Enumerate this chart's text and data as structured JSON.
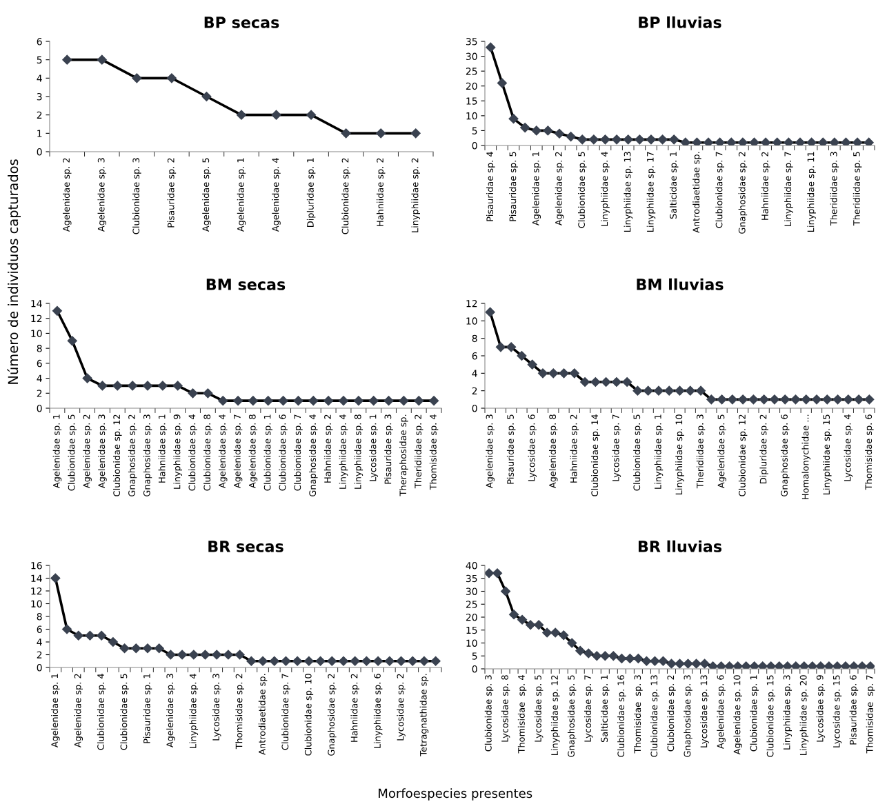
{
  "chart_data": [
    {
      "type": "line",
      "title": "BP secas",
      "categories": [
        "Agelenidae sp. 2",
        "Agelenidae sp. 3",
        "Clubionidae sp. 3",
        "Pisauridae sp. 2",
        "Agelenidae sp. 5",
        "Agelenidae sp. 1",
        "Agelenidae sp. 4",
        "Dipluridae sp. 1",
        "Clubionidae sp. 2",
        "Hahniidae sp. 2",
        "Linyphiidae sp. 2"
      ],
      "series": [
        {
          "color": "#3a4250",
          "values": [
            5,
            5,
            4,
            4,
            3,
            2,
            2,
            2,
            1,
            1,
            1
          ]
        }
      ],
      "ylim": [
        0,
        6
      ],
      "yticks": [
        0,
        1,
        2,
        3,
        4,
        5,
        6
      ],
      "marker": "diamond",
      "line_style": "solid",
      "grid": false
    },
    {
      "type": "line",
      "title": "BP lluvias",
      "categories": [
        "Pisauridae sp. 4",
        null,
        "Pisauridae sp. 5",
        null,
        "Agelenidae sp. 1",
        null,
        "Agelenidae sp. 2",
        null,
        "Clubionidae sp. 5",
        null,
        "Linyphiidae sp. 4",
        null,
        "Linyphiidae sp. 13",
        null,
        "Linyphiidae sp. 17",
        null,
        "Salticidae sp. 1",
        null,
        "Antrodiaetidae sp.",
        null,
        "Clubionidae sp. 7",
        null,
        "Gnaphosidae sp. 2",
        null,
        "Hahniidae sp. 2",
        null,
        "Linyphiidae sp. 7",
        null,
        "Linyphiidae sp. 11",
        null,
        "Theridiidae sp. 3",
        null,
        "Theridiidae sp. 5",
        null
      ],
      "series": [
        {
          "color": "#3a4250",
          "values": [
            33,
            21,
            9,
            6,
            5,
            5,
            4,
            3,
            2,
            2,
            2,
            2,
            2,
            2,
            2,
            2,
            2,
            1,
            1,
            1,
            1,
            1,
            1,
            1,
            1,
            1,
            1,
            1,
            1,
            1,
            1,
            1,
            1,
            1
          ]
        }
      ],
      "ylim": [
        0,
        35
      ],
      "yticks": [
        0,
        5,
        10,
        15,
        20,
        25,
        30,
        35
      ],
      "marker": "diamond",
      "line_style": "solid",
      "grid": false
    },
    {
      "type": "line",
      "title": "BM secas",
      "ylabel": "Número de individuos capturados",
      "categories": [
        "Agelenidae sp. 1",
        "Clubionidae sp. 5",
        "Agelenidae sp. 2",
        "Agelenidae sp. 3",
        "Clubionidae sp. 12",
        "Gnaphosidae sp. 2",
        "Gnaphosidae sp. 3",
        "Hahniidae sp. 1",
        "Linyphiidae sp. 9",
        "Clubionidae sp. 4",
        "Clubionidae sp. 8",
        "Agelenidae sp. 4",
        "Agelenidae sp. 7",
        "Agelenidae sp. 8",
        "Clubionidae sp. 1",
        "Clubionidae sp. 6",
        "Clubionidae sp. 7",
        "Gnaphosidae sp. 4",
        "Hahniidae sp. 2",
        "Linyphiidae sp. 4",
        "Linyphiidae sp. 8",
        "Lycosidae sp. 1",
        "Pisauridae sp. 3",
        "Theraphosidae sp.",
        "Theridiidae sp. 2",
        "Thomisidae sp. 4"
      ],
      "series": [
        {
          "color": "#3a4250",
          "values": [
            13,
            9,
            4,
            3,
            3,
            3,
            3,
            3,
            3,
            2,
            2,
            1,
            1,
            1,
            1,
            1,
            1,
            1,
            1,
            1,
            1,
            1,
            1,
            1,
            1,
            1
          ]
        }
      ],
      "ylim": [
        0,
        14
      ],
      "yticks": [
        0,
        2,
        4,
        6,
        8,
        10,
        12,
        14
      ],
      "marker": "diamond",
      "line_style": "solid",
      "grid": false
    },
    {
      "type": "line",
      "title": "BM lluvias",
      "categories": [
        "Agelenidae sp. 3",
        null,
        "Pisauridae sp. 5",
        null,
        "Lycosidae sp. 6",
        null,
        "Agelenidae sp. 8",
        null,
        "Hahniidae sp. 2",
        null,
        "Clubionidae sp. 14",
        null,
        "Lycosidae sp. 7",
        null,
        "Clubionidae sp. 5",
        null,
        "Linyphiidae sp. 1",
        null,
        "Linyphiidae sp. 10",
        null,
        "Theridiidae sp. 3",
        null,
        "Agelenidae sp. 5",
        null,
        "Clubionidae sp. 12",
        null,
        "Dipluridae sp. 2",
        null,
        "Gnaphosidae sp. 6",
        null,
        "Homalonychidae ...",
        null,
        "Linyphiidae sp. 15",
        null,
        "Lycosidae sp. 4",
        null,
        "Thomisidae sp. 6"
      ],
      "series": [
        {
          "color": "#3a4250",
          "values": [
            11,
            7,
            7,
            6,
            5,
            4,
            4,
            4,
            4,
            3,
            3,
            3,
            3,
            3,
            2,
            2,
            2,
            2,
            2,
            2,
            2,
            1,
            1,
            1,
            1,
            1,
            1,
            1,
            1,
            1,
            1,
            1,
            1,
            1,
            1,
            1,
            1
          ]
        }
      ],
      "ylim": [
        0,
        12
      ],
      "yticks": [
        0,
        2,
        4,
        6,
        8,
        10,
        12
      ],
      "marker": "diamond",
      "line_style": "solid",
      "grid": false
    },
    {
      "type": "line",
      "title": "BR secas",
      "categories": [
        "Agelenidae sp. 1",
        null,
        "Agelenidae sp. 2",
        null,
        "Clubionidae sp. 4",
        null,
        "Clubionidae sp. 5",
        null,
        "Pisauridae sp. 1",
        null,
        "Agelenidae sp. 3",
        null,
        "Linyphiidae sp. 4",
        null,
        "Lycosidae sp. 3",
        null,
        "Thomisidae sp. 2",
        null,
        "Antrodiaetidae sp.",
        null,
        "Clubionidae sp. 7",
        null,
        "Clubionidae sp. 10",
        null,
        "Gnaphosidae sp. 2",
        null,
        "Hahniidae sp. 2",
        null,
        "Linyphiidae sp. 6",
        null,
        "Lycosidae sp. 2",
        null,
        "Tetragnathidae sp.",
        null
      ],
      "series": [
        {
          "color": "#3a4250",
          "values": [
            14,
            6,
            5,
            5,
            5,
            4,
            3,
            3,
            3,
            3,
            2,
            2,
            2,
            2,
            2,
            2,
            2,
            1,
            1,
            1,
            1,
            1,
            1,
            1,
            1,
            1,
            1,
            1,
            1,
            1,
            1,
            1,
            1,
            1
          ]
        }
      ],
      "ylim": [
        0,
        16
      ],
      "yticks": [
        0,
        2,
        4,
        6,
        8,
        10,
        12,
        14,
        16
      ],
      "marker": "diamond",
      "line_style": "solid",
      "grid": false
    },
    {
      "type": "line",
      "title": "BR lluvias",
      "xlabel": "Morfoespecies presentes",
      "categories": [
        "Clubionidae sp. 3",
        null,
        "Lycosidae sp. 8",
        null,
        "Thomisidae  sp. 4",
        null,
        "Lycosidae sp. 5",
        null,
        "Linyphiidae sp. 12",
        null,
        "Gnaphosidae sp. 5",
        null,
        "Lycosidae sp. 7",
        null,
        "Salticidae sp. 1",
        null,
        "Clubionidae sp. 16",
        null,
        "Thomisidae  sp. 3",
        null,
        "Clubionidae sp. 13",
        null,
        "Clubionidae sp. 2",
        null,
        "Gnaphosidae sp. 3",
        null,
        "Lycosidae sp. 13",
        null,
        "Agelenidae sp. 6",
        null,
        "Agelenidae sp. 10",
        null,
        "Clubionidae sp. 1",
        null,
        "Clubionidae sp. 15",
        null,
        "Linyphiidae sp. 3",
        null,
        "Linyphiidae sp. 20",
        null,
        "Lycosidae sp. 9",
        null,
        "Lycosidae sp. 15",
        null,
        "Pisauridae sp. 6",
        null,
        "Thomisidae  sp. 7"
      ],
      "series": [
        {
          "color": "#3a4250",
          "values": [
            37,
            37,
            30,
            21,
            19,
            17,
            17,
            14,
            14,
            13,
            10,
            7,
            6,
            5,
            5,
            5,
            4,
            4,
            4,
            3,
            3,
            3,
            2,
            2,
            2,
            2,
            2,
            1,
            1,
            1,
            1,
            1,
            1,
            1,
            1,
            1,
            1,
            1,
            1,
            1,
            1,
            1,
            1,
            1,
            1,
            1,
            1
          ]
        }
      ],
      "ylim": [
        0,
        40
      ],
      "yticks": [
        0,
        5,
        10,
        15,
        20,
        25,
        30,
        35,
        40
      ],
      "marker": "diamond",
      "line_style": "solid",
      "grid": false
    }
  ]
}
